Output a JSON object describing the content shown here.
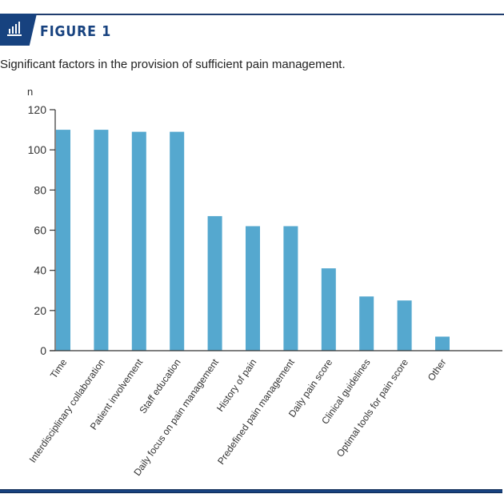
{
  "header": {
    "icon": "bar-chart-icon",
    "figure_label": "FIGURE 1",
    "subtitle": "Significant factors in the provision of sufficient pain management."
  },
  "colors": {
    "bar": "#55a8cf",
    "brand": "#17427f",
    "axis": "#333333"
  },
  "chart_data": {
    "type": "bar",
    "title": "Significant factors in the provision of sufficient pain management.",
    "xlabel": "",
    "ylabel": "n",
    "ylim": [
      0,
      120
    ],
    "yticks": [
      0,
      20,
      40,
      60,
      80,
      100,
      120
    ],
    "grid": false,
    "legend": "none",
    "categories": [
      "Time",
      "Interdisciplinary collaboration",
      "Patient involvement",
      "Staff education",
      "Daily focus on pain management",
      "History of pain",
      "Predefined pain management",
      "Daily pain score",
      "Clinical guidelines",
      "Optimal tools for pain score",
      "Other"
    ],
    "values": [
      110,
      110,
      109,
      109,
      67,
      62,
      62,
      41,
      27,
      25,
      7
    ]
  }
}
